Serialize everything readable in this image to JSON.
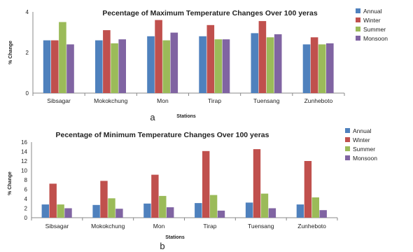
{
  "chart_data": [
    {
      "type": "bar",
      "panel_label": "a",
      "title": "Pecentage of Maximum Temperature Changes Over 100 yeras",
      "xlabel": "Stations",
      "ylabel": "% Change",
      "categories": [
        "Sibsagar",
        "Mokokchung",
        "Mon",
        "Tirap",
        "Tuensang",
        "Zunheboto"
      ],
      "ylim": [
        0,
        4
      ],
      "yticks": [
        0,
        2,
        4
      ],
      "grid": false,
      "legend_position": "right",
      "series": [
        {
          "name": "Annual",
          "color": "#4F81BD",
          "values": [
            2.6,
            2.6,
            2.8,
            2.8,
            2.95,
            2.4
          ]
        },
        {
          "name": "Winter",
          "color": "#C0504D",
          "values": [
            2.6,
            3.1,
            3.6,
            3.35,
            3.55,
            2.75
          ]
        },
        {
          "name": "Summer",
          "color": "#9BBB59",
          "values": [
            3.5,
            2.45,
            2.6,
            2.65,
            2.75,
            2.4
          ]
        },
        {
          "name": "Monsoon",
          "color": "#8064A2",
          "values": [
            2.4,
            2.65,
            2.98,
            2.65,
            2.9,
            2.45
          ]
        }
      ]
    },
    {
      "type": "bar",
      "panel_label": "b",
      "title": "Pecentage of Minimum Temperature Changes Over 100 yeras",
      "xlabel": "Stations",
      "ylabel": "% Change",
      "categories": [
        "Sibsagar",
        "Mokokchung",
        "Mon",
        "Tirap",
        "Tuensang",
        "Zunheboto"
      ],
      "ylim": [
        0,
        16
      ],
      "yticks": [
        0,
        2,
        4,
        6,
        8,
        10,
        12,
        14,
        16
      ],
      "grid": false,
      "legend_position": "right",
      "series": [
        {
          "name": "Annual",
          "color": "#4F81BD",
          "values": [
            2.8,
            2.7,
            3.0,
            3.1,
            3.2,
            2.8
          ]
        },
        {
          "name": "Winter",
          "color": "#C0504D",
          "values": [
            7.2,
            7.8,
            9.1,
            14.1,
            14.5,
            12.0
          ]
        },
        {
          "name": "Summer",
          "color": "#9BBB59",
          "values": [
            2.8,
            4.1,
            4.6,
            4.8,
            5.1,
            4.3
          ]
        },
        {
          "name": "Monsoon",
          "color": "#8064A2",
          "values": [
            2.0,
            1.9,
            2.2,
            1.5,
            2.0,
            1.6
          ]
        }
      ]
    }
  ]
}
